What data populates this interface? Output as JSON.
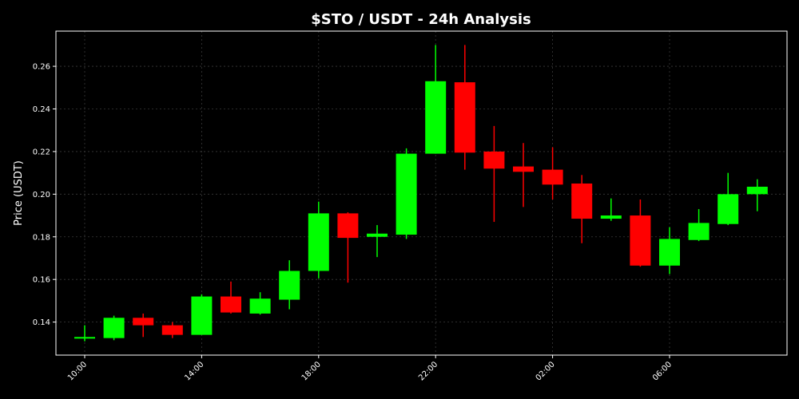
{
  "chart_data": {
    "type": "candlestick",
    "title": "$STO / USDT - 24h Analysis",
    "ylabel": "Price (USDT)",
    "xlabel": "",
    "ylim": [
      0.1245,
      0.2765
    ],
    "yticks": [
      0.14,
      0.16,
      0.18,
      0.2,
      0.22,
      0.24,
      0.26
    ],
    "ytick_labels": [
      "0.14",
      "0.16",
      "0.18",
      "0.20",
      "0.22",
      "0.24",
      "0.26"
    ],
    "xtick_labels": [
      "10:00",
      "14:00",
      "18:00",
      "22:00",
      "02:00",
      "06:00"
    ],
    "xtick_positions": [
      0,
      4,
      8,
      12,
      16,
      20
    ],
    "grid": true,
    "colors": {
      "up": "#00ff00",
      "down": "#ff0000",
      "background": "#000000",
      "text": "#ffffff"
    },
    "candles": [
      {
        "time": "10:00",
        "open": 0.133,
        "high": 0.1385,
        "low": 0.131,
        "close": 0.133
      },
      {
        "time": "11:00",
        "open": 0.1325,
        "high": 0.143,
        "low": 0.1315,
        "close": 0.142
      },
      {
        "time": "12:00",
        "open": 0.142,
        "high": 0.144,
        "low": 0.133,
        "close": 0.1385
      },
      {
        "time": "13:00",
        "open": 0.1385,
        "high": 0.14,
        "low": 0.1325,
        "close": 0.134
      },
      {
        "time": "14:00",
        "open": 0.134,
        "high": 0.153,
        "low": 0.134,
        "close": 0.152
      },
      {
        "time": "15:00",
        "open": 0.152,
        "high": 0.159,
        "low": 0.144,
        "close": 0.1445
      },
      {
        "time": "16:00",
        "open": 0.144,
        "high": 0.154,
        "low": 0.1435,
        "close": 0.151
      },
      {
        "time": "17:00",
        "open": 0.1505,
        "high": 0.169,
        "low": 0.146,
        "close": 0.164
      },
      {
        "time": "18:00",
        "open": 0.164,
        "high": 0.1965,
        "low": 0.1605,
        "close": 0.191
      },
      {
        "time": "19:00",
        "open": 0.191,
        "high": 0.1915,
        "low": 0.1585,
        "close": 0.1795
      },
      {
        "time": "20:00",
        "open": 0.18,
        "high": 0.1855,
        "low": 0.1705,
        "close": 0.1815
      },
      {
        "time": "21:00",
        "open": 0.181,
        "high": 0.2215,
        "low": 0.179,
        "close": 0.219
      },
      {
        "time": "22:00",
        "open": 0.219,
        "high": 0.27,
        "low": 0.219,
        "close": 0.253
      },
      {
        "time": "23:00",
        "open": 0.2525,
        "high": 0.27,
        "low": 0.2115,
        "close": 0.2195
      },
      {
        "time": "00:00",
        "open": 0.22,
        "high": 0.232,
        "low": 0.187,
        "close": 0.212
      },
      {
        "time": "01:00",
        "open": 0.213,
        "high": 0.224,
        "low": 0.194,
        "close": 0.2105
      },
      {
        "time": "02:00",
        "open": 0.2115,
        "high": 0.222,
        "low": 0.1975,
        "close": 0.2045
      },
      {
        "time": "03:00",
        "open": 0.205,
        "high": 0.209,
        "low": 0.177,
        "close": 0.1885
      },
      {
        "time": "04:00",
        "open": 0.1885,
        "high": 0.198,
        "low": 0.1875,
        "close": 0.19
      },
      {
        "time": "05:00",
        "open": 0.19,
        "high": 0.1975,
        "low": 0.166,
        "close": 0.1665
      },
      {
        "time": "06:00",
        "open": 0.1665,
        "high": 0.1845,
        "low": 0.1625,
        "close": 0.179
      },
      {
        "time": "07:00",
        "open": 0.1785,
        "high": 0.193,
        "low": 0.178,
        "close": 0.1865
      },
      {
        "time": "08:00",
        "open": 0.186,
        "high": 0.21,
        "low": 0.1855,
        "close": 0.2
      },
      {
        "time": "09:00",
        "open": 0.2,
        "high": 0.207,
        "low": 0.192,
        "close": 0.2035
      }
    ]
  }
}
